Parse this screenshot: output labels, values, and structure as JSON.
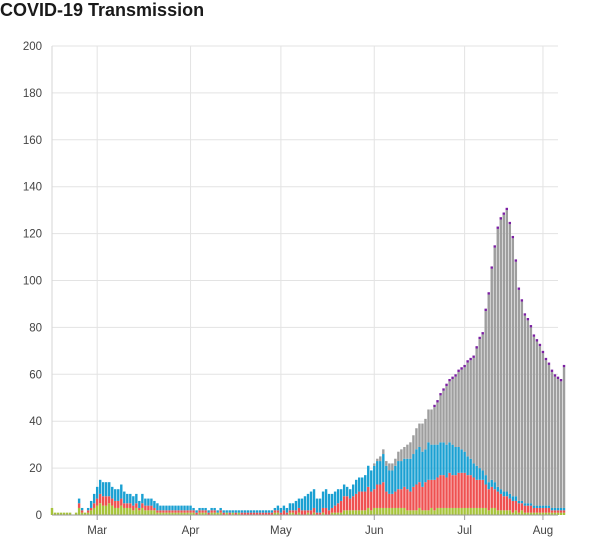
{
  "title": "COVID-19 Transmission",
  "chart_data": {
    "type": "bar",
    "stacked": true,
    "title": "COVID-19 Transmission",
    "xlabel": "",
    "ylabel": "",
    "ylim": [
      0,
      200
    ],
    "y_ticks": [
      0,
      20,
      40,
      60,
      80,
      100,
      120,
      140,
      160,
      180,
      200
    ],
    "x_range": [
      "2020-02-24",
      "2020-08-10"
    ],
    "x_ticks": [
      {
        "date": "2020-03-10",
        "label": "Mar"
      },
      {
        "date": "2020-04-10",
        "label": "Apr"
      },
      {
        "date": "2020-05-10",
        "label": "May"
      },
      {
        "date": "2020-06-10",
        "label": "Jun"
      },
      {
        "date": "2020-07-10",
        "label": "Jul"
      },
      {
        "date": "2020-08-05",
        "label": "Aug"
      }
    ],
    "grid": true,
    "legend": "none",
    "series_colors": [
      "#a6c33a",
      "#ef5050",
      "#1aa0d2",
      "#9e9e9e",
      "#7b1fa2"
    ],
    "start_date": "2020-02-24",
    "series": [
      {
        "color": "#a6c33a",
        "values": [
          3,
          1,
          1,
          1,
          1,
          1,
          1,
          0,
          1,
          3,
          1,
          1,
          1,
          2,
          3,
          4,
          5,
          4,
          4,
          5,
          4,
          3,
          3,
          4,
          3,
          3,
          3,
          2,
          3,
          2,
          3,
          2,
          2,
          2,
          2,
          1,
          1,
          1,
          1,
          1,
          1,
          1,
          1,
          1,
          1,
          1,
          1,
          1,
          0,
          1,
          1,
          1,
          0,
          1,
          1,
          1,
          1,
          0,
          1,
          0,
          1,
          0,
          1,
          0,
          0,
          0,
          0,
          0,
          0,
          0,
          0,
          0,
          0,
          0,
          1,
          1,
          0,
          0,
          0,
          1,
          1,
          0,
          1,
          0,
          0,
          1,
          0,
          1,
          0,
          0,
          1,
          0,
          0,
          1,
          1,
          1,
          1,
          2,
          2,
          2,
          2,
          2,
          2,
          2,
          2,
          3,
          2,
          3,
          3,
          3,
          3,
          3,
          3,
          3,
          3,
          3,
          3,
          3,
          2,
          2,
          2,
          2,
          3,
          2,
          2,
          2,
          3,
          2,
          3,
          3,
          3,
          3,
          3,
          3,
          3,
          3,
          3,
          3,
          3,
          3,
          3,
          3,
          3,
          3,
          3,
          2,
          3,
          3,
          2,
          2,
          2,
          2,
          2,
          1,
          2,
          1,
          2,
          1,
          1,
          1,
          1,
          1,
          1,
          1,
          1,
          1,
          1,
          1,
          1,
          1,
          1
        ]
      },
      {
        "color": "#ef5050",
        "values": [
          0,
          0,
          0,
          0,
          0,
          0,
          0,
          0,
          0,
          2,
          1,
          0,
          1,
          1,
          2,
          3,
          4,
          4,
          4,
          3,
          3,
          3,
          3,
          3,
          2,
          2,
          2,
          2,
          2,
          1,
          2,
          2,
          2,
          2,
          1,
          1,
          1,
          1,
          1,
          1,
          1,
          1,
          1,
          1,
          1,
          1,
          1,
          1,
          1,
          1,
          1,
          1,
          1,
          1,
          1,
          0,
          1,
          1,
          0,
          1,
          0,
          1,
          0,
          1,
          1,
          1,
          1,
          1,
          1,
          1,
          1,
          1,
          1,
          1,
          1,
          1,
          1,
          2,
          1,
          1,
          1,
          2,
          2,
          2,
          2,
          1,
          2,
          2,
          1,
          1,
          2,
          3,
          2,
          2,
          3,
          4,
          5,
          6,
          6,
          5,
          6,
          7,
          8,
          8,
          8,
          9,
          8,
          8,
          10,
          10,
          11,
          7,
          6,
          6,
          7,
          8,
          8,
          9,
          9,
          8,
          10,
          11,
          11,
          10,
          12,
          13,
          12,
          13,
          13,
          14,
          14,
          13,
          15,
          14,
          14,
          15,
          15,
          15,
          14,
          14,
          13,
          12,
          12,
          12,
          10,
          9,
          9,
          8,
          8,
          7,
          6,
          6,
          5,
          5,
          4,
          4,
          3,
          3,
          3,
          3,
          2,
          2,
          2,
          2,
          2,
          2,
          1,
          1,
          1,
          1,
          1
        ]
      },
      {
        "color": "#1aa0d2",
        "values": [
          0,
          0,
          0,
          0,
          0,
          0,
          0,
          0,
          0,
          2,
          1,
          0,
          1,
          3,
          4,
          5,
          6,
          6,
          6,
          6,
          5,
          5,
          5,
          6,
          5,
          4,
          4,
          4,
          4,
          3,
          4,
          3,
          3,
          3,
          3,
          3,
          2,
          2,
          2,
          2,
          2,
          2,
          2,
          2,
          2,
          2,
          2,
          1,
          1,
          1,
          1,
          1,
          1,
          1,
          1,
          1,
          1,
          1,
          1,
          1,
          1,
          1,
          1,
          1,
          1,
          1,
          1,
          1,
          1,
          1,
          1,
          1,
          1,
          1,
          1,
          2,
          2,
          2,
          2,
          3,
          3,
          4,
          4,
          5,
          6,
          7,
          8,
          8,
          6,
          6,
          7,
          8,
          7,
          6,
          6,
          6,
          5,
          5,
          4,
          4,
          5,
          6,
          6,
          6,
          7,
          9,
          9,
          10,
          10,
          10,
          12,
          11,
          10,
          10,
          11,
          12,
          12,
          12,
          13,
          14,
          14,
          15,
          15,
          15,
          14,
          16,
          15,
          15,
          14,
          14,
          14,
          14,
          13,
          13,
          12,
          11,
          10,
          9,
          8,
          7,
          6,
          6,
          5,
          4,
          4,
          3,
          3,
          3,
          2,
          2,
          2,
          2,
          2,
          2,
          2,
          1,
          1,
          1,
          1,
          1,
          1,
          1,
          1,
          1,
          1,
          1,
          1,
          1,
          1,
          1,
          1
        ]
      },
      {
        "color": "#9e9e9e",
        "values": [
          0,
          0,
          0,
          0,
          0,
          0,
          0,
          0,
          0,
          0,
          0,
          0,
          0,
          0,
          0,
          0,
          0,
          0,
          0,
          0,
          0,
          0,
          0,
          0,
          0,
          0,
          0,
          0,
          0,
          0,
          0,
          0,
          0,
          0,
          0,
          0,
          0,
          0,
          0,
          0,
          0,
          0,
          0,
          0,
          0,
          0,
          0,
          0,
          0,
          0,
          0,
          0,
          0,
          0,
          0,
          0,
          0,
          0,
          0,
          0,
          0,
          0,
          0,
          0,
          0,
          0,
          0,
          0,
          0,
          0,
          0,
          0,
          0,
          0,
          0,
          0,
          0,
          0,
          0,
          0,
          0,
          0,
          0,
          0,
          0,
          0,
          0,
          0,
          0,
          0,
          0,
          0,
          0,
          0,
          0,
          0,
          0,
          0,
          0,
          0,
          0,
          0,
          0,
          0,
          0,
          0,
          0,
          1,
          1,
          2,
          2,
          2,
          3,
          3,
          3,
          4,
          5,
          5,
          6,
          7,
          8,
          9,
          10,
          12,
          13,
          14,
          15,
          16,
          18,
          20,
          22,
          25,
          26,
          28,
          30,
          32,
          34,
          36,
          40,
          42,
          45,
          50,
          55,
          58,
          70,
          80,
          90,
          100,
          110,
          115,
          118,
          120,
          115,
          110,
          100,
          90,
          85,
          80,
          78,
          75,
          72,
          70,
          68,
          65,
          62,
          60,
          58,
          56,
          55,
          54,
          60,
          64
        ]
      },
      {
        "color": "#7b1fa2",
        "values": [
          0,
          0,
          0,
          0,
          0,
          0,
          0,
          0,
          0,
          0,
          0,
          0,
          0,
          0,
          0,
          0,
          0,
          0,
          0,
          0,
          0,
          0,
          0,
          0,
          0,
          0,
          0,
          0,
          0,
          0,
          0,
          0,
          0,
          0,
          0,
          0,
          0,
          0,
          0,
          0,
          0,
          0,
          0,
          0,
          0,
          0,
          0,
          0,
          0,
          0,
          0,
          0,
          0,
          0,
          0,
          0,
          0,
          0,
          0,
          0,
          0,
          0,
          0,
          0,
          0,
          0,
          0,
          0,
          0,
          0,
          0,
          0,
          0,
          0,
          0,
          0,
          0,
          0,
          0,
          0,
          0,
          0,
          0,
          0,
          0,
          0,
          0,
          0,
          0,
          0,
          0,
          0,
          0,
          0,
          0,
          0,
          0,
          0,
          0,
          0,
          0,
          0,
          0,
          0,
          0,
          0,
          0,
          0,
          0,
          0,
          0,
          0,
          0,
          0,
          0,
          0,
          0,
          0,
          0,
          0,
          0,
          0,
          0,
          0,
          0,
          0,
          0,
          1,
          1,
          1,
          1,
          1,
          1,
          1,
          1,
          1,
          1,
          1,
          1,
          1,
          1,
          1,
          1,
          1,
          1,
          1,
          1,
          1,
          1,
          1,
          1,
          1,
          1,
          1,
          1,
          1,
          1,
          1,
          1,
          1,
          1,
          1,
          1,
          1,
          1,
          1,
          1,
          1,
          1,
          1,
          1
        ]
      }
    ]
  }
}
